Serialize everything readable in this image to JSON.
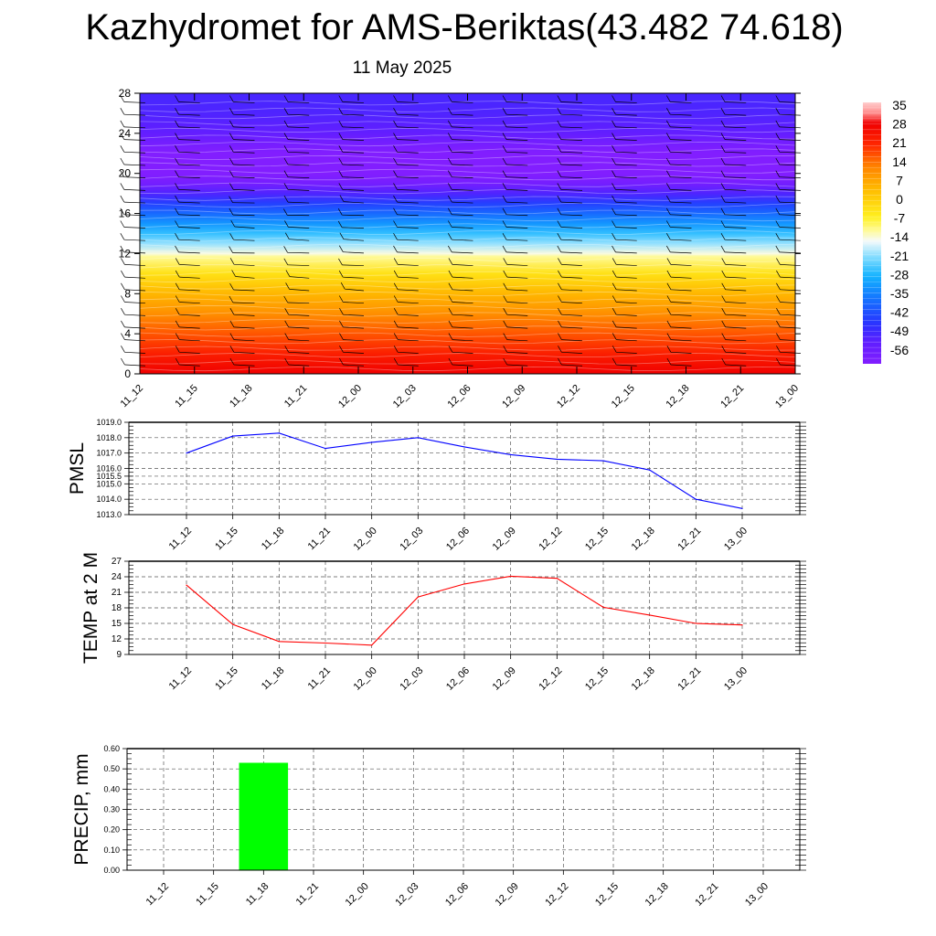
{
  "title": "Kazhydromet for AMS-Beriktas(43.482 74.618)",
  "subtitle": "11 May 2025",
  "time_labels": [
    "11_12",
    "11_15",
    "11_18",
    "11_21",
    "12_00",
    "12_03",
    "12_06",
    "12_09",
    "12_12",
    "12_15",
    "12_18",
    "12_21",
    "13_00"
  ],
  "chart_data": [
    {
      "type": "heatmap",
      "title": "",
      "xlabel": "",
      "ylabel": "",
      "x": [
        "11_12",
        "11_15",
        "11_18",
        "11_21",
        "12_00",
        "12_03",
        "12_06",
        "12_09",
        "12_12",
        "12_15",
        "12_18",
        "12_21",
        "13_00"
      ],
      "ylim": [
        0,
        28
      ],
      "yticks": [
        0,
        4,
        8,
        12,
        16,
        20,
        24,
        28
      ],
      "colorbar": {
        "ticks": [
          35,
          28,
          21,
          14,
          7,
          0,
          -7,
          -14,
          -21,
          -28,
          -35,
          -42,
          -49,
          -56
        ],
        "range": [
          -60,
          38
        ]
      },
      "profile": [
        {
          "y": 0,
          "v": 30
        },
        {
          "y": 2,
          "v": 24
        },
        {
          "y": 4,
          "v": 18
        },
        {
          "y": 6,
          "v": 12
        },
        {
          "y": 8,
          "v": 6
        },
        {
          "y": 10,
          "v": -2
        },
        {
          "y": 11.7,
          "v": -10
        },
        {
          "y": 12,
          "v": -13
        },
        {
          "y": 13,
          "v": -19
        },
        {
          "y": 14,
          "v": -25
        },
        {
          "y": 15,
          "v": -31
        },
        {
          "y": 16,
          "v": -37
        },
        {
          "y": 17,
          "v": -43
        },
        {
          "y": 18,
          "v": -50
        },
        {
          "y": 19,
          "v": -57
        },
        {
          "y": 20,
          "v": -60
        },
        {
          "y": 22,
          "v": -60
        },
        {
          "y": 23,
          "v": -57
        },
        {
          "y": 24,
          "v": -53
        },
        {
          "y": 26,
          "v": -50
        },
        {
          "y": 28,
          "v": -49
        }
      ],
      "wind_barbs": true
    },
    {
      "type": "line",
      "ylabel": "PMSL",
      "categories": [
        "11_12",
        "11_15",
        "11_18",
        "11_21",
        "12_00",
        "12_03",
        "12_06",
        "12_09",
        "12_12",
        "12_15",
        "12_18",
        "12_21",
        "13_00"
      ],
      "series": [
        {
          "values": [
            1017.0,
            1018.1,
            1018.3,
            1017.3,
            1017.7,
            1018.0,
            1017.4,
            1016.9,
            1016.6,
            1016.5,
            1015.9,
            1014.0,
            1013.4
          ]
        }
      ],
      "ylim": [
        1013.0,
        1019.0
      ],
      "yticks": [
        "1013.0",
        "1014.0",
        "1015.0",
        "1015.5",
        "1016.0",
        "1017.0",
        "1018.0",
        "1019.0"
      ],
      "yticks_values": [
        1013.0,
        1014.0,
        1015.0,
        1015.5,
        1016.0,
        1017.0,
        1018.0,
        1019.0
      ],
      "color": "#0000ff",
      "grid": true
    },
    {
      "type": "line",
      "ylabel": "TEMP at 2 M",
      "categories": [
        "11_12",
        "11_15",
        "11_18",
        "11_21",
        "12_00",
        "12_03",
        "12_06",
        "12_09",
        "12_12",
        "12_15",
        "12_18",
        "12_21",
        "13_00"
      ],
      "series": [
        {
          "values": [
            22.4,
            14.8,
            11.5,
            11.2,
            10.8,
            20.1,
            22.6,
            24.1,
            23.7,
            18.1,
            16.6,
            15.0,
            14.7
          ]
        }
      ],
      "ylim": [
        9,
        27
      ],
      "yticks": [
        "9",
        "12",
        "15",
        "18",
        "21",
        "24",
        "27"
      ],
      "color": "#ff0000",
      "grid": true
    },
    {
      "type": "bar",
      "ylabel": "PRECIP, mm",
      "categories": [
        "11_12",
        "11_15",
        "11_18",
        "11_21",
        "12_00",
        "12_03",
        "12_06",
        "12_09",
        "12_12",
        "12_15",
        "12_18",
        "12_21",
        "13_00"
      ],
      "values": [
        0,
        0,
        0.53,
        0,
        0,
        0,
        0,
        0,
        0,
        0,
        0,
        0,
        0
      ],
      "ylim": [
        0,
        0.6
      ],
      "yticks": [
        "0.00",
        "0.10",
        "0.20",
        "0.30",
        "0.40",
        "0.50",
        "0.60"
      ],
      "color": "#00ff00",
      "grid": true
    }
  ]
}
